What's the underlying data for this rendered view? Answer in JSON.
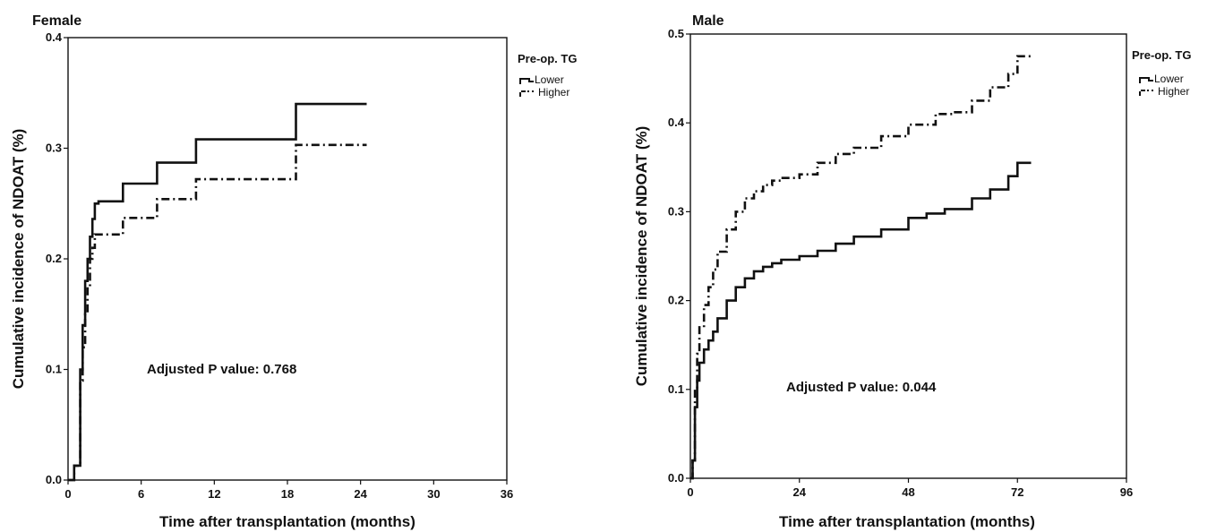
{
  "chart_data": [
    {
      "type": "line",
      "step": true,
      "title": "Female",
      "xlabel": "Time after transplantation (months)",
      "ylabel": "Cumulative incidence of NDOAT (%)",
      "xlim": [
        0,
        36
      ],
      "ylim": [
        0,
        0.4
      ],
      "xticks": [
        "0",
        "6",
        "12",
        "18",
        "24",
        "30",
        "36"
      ],
      "yticks": [
        "0.0",
        "0.1",
        "0.2",
        "0.3",
        "0.4"
      ],
      "grid": false,
      "legend": {
        "title": "Pre-op. TG",
        "position": "top-right",
        "entries": [
          "Lower",
          "Higher"
        ]
      },
      "annotation": "Adjusted P value: 0.768",
      "series": [
        {
          "name": "Lower",
          "style": "solid",
          "x": [
            0,
            0.5,
            1.0,
            1.2,
            1.4,
            1.6,
            1.8,
            2.0,
            2.2,
            2.5,
            4.5,
            7.3,
            10.5,
            18.7,
            24.5
          ],
          "y": [
            0,
            0.013,
            0.1,
            0.14,
            0.18,
            0.2,
            0.22,
            0.236,
            0.25,
            0.252,
            0.268,
            0.287,
            0.308,
            0.34,
            0.34
          ]
        },
        {
          "name": "Higher",
          "style": "dash-dot",
          "x": [
            0,
            0.5,
            1.0,
            1.2,
            1.4,
            1.6,
            1.8,
            2.0,
            2.2,
            2.5,
            4.5,
            7.3,
            10.5,
            18.7,
            24.5
          ],
          "y": [
            0,
            0.013,
            0.09,
            0.12,
            0.15,
            0.175,
            0.2,
            0.21,
            0.222,
            0.222,
            0.237,
            0.254,
            0.272,
            0.303,
            0.303
          ]
        }
      ]
    },
    {
      "type": "line",
      "step": true,
      "title": "Male",
      "xlabel": "Time after transplantation (months)",
      "ylabel": "Cumulative incidence of NDOAT (%)",
      "xlim": [
        0,
        96
      ],
      "ylim": [
        0,
        0.5
      ],
      "xticks": [
        "0",
        "24",
        "48",
        "72",
        "96"
      ],
      "yticks": [
        "0.0",
        "0.1",
        "0.2",
        "0.3",
        "0.4",
        "0.5"
      ],
      "grid": false,
      "legend": {
        "title": "Pre-op. TG",
        "position": "top-right",
        "entries": [
          "Lower",
          "Higher"
        ]
      },
      "annotation": "Adjusted P value: 0.044",
      "series": [
        {
          "name": "Lower",
          "style": "solid",
          "x": [
            0,
            0.5,
            1,
            1.5,
            2,
            3,
            4,
            5,
            6,
            8,
            10,
            12,
            14,
            16,
            18,
            20,
            24,
            28,
            32,
            36,
            42,
            48,
            52,
            56,
            62,
            66,
            70,
            72,
            75
          ],
          "y": [
            0,
            0.02,
            0.08,
            0.11,
            0.13,
            0.145,
            0.155,
            0.165,
            0.18,
            0.2,
            0.215,
            0.225,
            0.233,
            0.238,
            0.242,
            0.246,
            0.25,
            0.256,
            0.264,
            0.272,
            0.28,
            0.293,
            0.298,
            0.303,
            0.315,
            0.325,
            0.34,
            0.355,
            0.355
          ]
        },
        {
          "name": "Higher",
          "style": "dash-dot",
          "x": [
            0,
            0.5,
            1,
            1.5,
            2,
            3,
            4,
            5,
            6,
            8,
            10,
            12,
            14,
            16,
            18,
            20,
            24,
            28,
            32,
            36,
            42,
            48,
            54,
            58,
            62,
            66,
            70,
            72,
            75
          ],
          "y": [
            0,
            0.02,
            0.1,
            0.14,
            0.17,
            0.195,
            0.215,
            0.235,
            0.255,
            0.28,
            0.3,
            0.315,
            0.323,
            0.33,
            0.335,
            0.338,
            0.342,
            0.355,
            0.365,
            0.372,
            0.385,
            0.398,
            0.41,
            0.412,
            0.425,
            0.44,
            0.455,
            0.475,
            0.475
          ]
        }
      ]
    }
  ]
}
